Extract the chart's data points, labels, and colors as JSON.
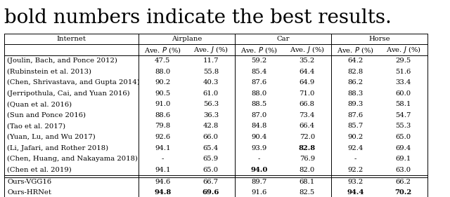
{
  "title_text": "bold numbers indicate the best results.",
  "rows": [
    [
      "(Joulin, Bach, and Ponce 2012)",
      "47.5",
      "11.7",
      "59.2",
      "35.2",
      "64.2",
      "29.5"
    ],
    [
      "(Rubinstein et al. 2013)",
      "88.0",
      "55.8",
      "85.4",
      "64.4",
      "82.8",
      "51.6"
    ],
    [
      "(Chen, Shrivastava, and Gupta 2014)",
      "90.2",
      "40.3",
      "87.6",
      "64.9",
      "86.2",
      "33.4"
    ],
    [
      "(Jerripothula, Cai, and Yuan 2016)",
      "90.5",
      "61.0",
      "88.0",
      "71.0",
      "88.3",
      "60.0"
    ],
    [
      "(Quan et al. 2016)",
      "91.0",
      "56.3",
      "88.5",
      "66.8",
      "89.3",
      "58.1"
    ],
    [
      "(Sun and Ponce 2016)",
      "88.6",
      "36.3",
      "87.0",
      "73.4",
      "87.6",
      "54.7"
    ],
    [
      "(Tao et al. 2017)",
      "79.8",
      "42.8",
      "84.8",
      "66.4",
      "85.7",
      "55.3"
    ],
    [
      "(Yuan, Lu, and Wu 2017)",
      "92.6",
      "66.0",
      "90.4",
      "72.0",
      "90.2",
      "65.0"
    ],
    [
      "(Li, Jafari, and Rother 2018)",
      "94.1",
      "65.4",
      "93.9",
      "82.8",
      "92.4",
      "69.4"
    ],
    [
      "(Chen, Huang, and Nakayama 2018)",
      "-",
      "65.9",
      "-",
      "76.9",
      "-",
      "69.1"
    ],
    [
      "(Chen et al. 2019)",
      "94.1",
      "65.0",
      "94.0",
      "82.0",
      "92.2",
      "63.0"
    ]
  ],
  "our_rows": [
    [
      "Ours-VGG16",
      "94.6",
      "66.7",
      "89.7",
      "68.1",
      "93.2",
      "66.2"
    ],
    [
      "Ours-HRNet",
      "94.8",
      "69.6",
      "91.6",
      "82.5",
      "94.4",
      "70.2"
    ]
  ],
  "bold_cells_data": [
    [
      8,
      4
    ],
    [
      10,
      3
    ],
    [
      13,
      1
    ],
    [
      13,
      2
    ],
    [
      13,
      5
    ],
    [
      13,
      6
    ]
  ],
  "background_color": "#ffffff",
  "line_color": "#000000",
  "font_size": 7.2,
  "title_font_size": 20
}
